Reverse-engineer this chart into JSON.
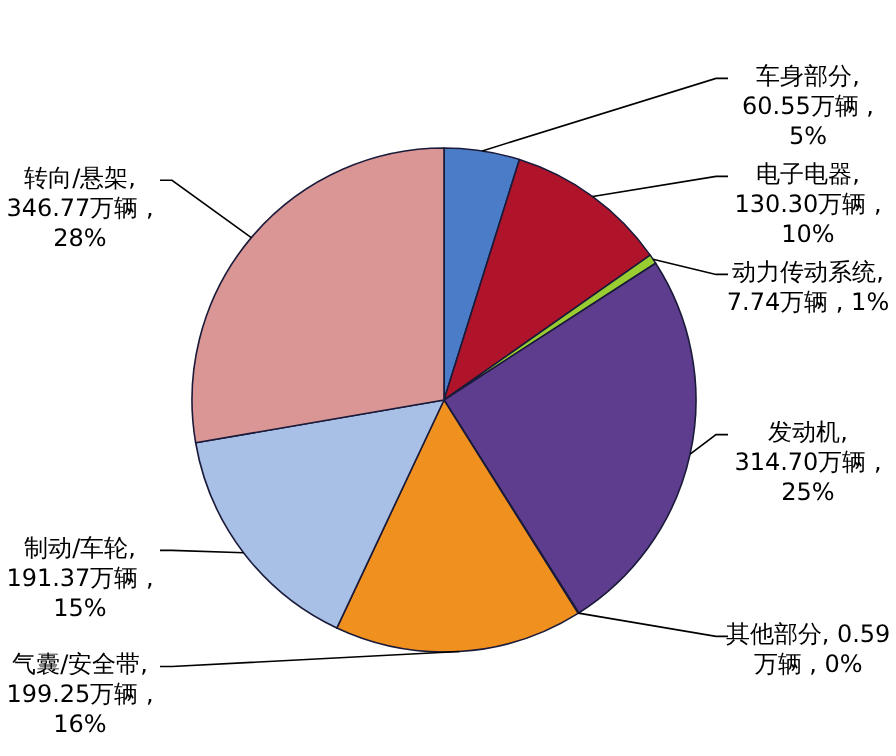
{
  "chart_data": {
    "type": "pie",
    "categories": [
      "车身部分",
      "电子电器",
      "动力传动系统",
      "发动机",
      "其他部分",
      "气囊/安全带",
      "制动/车轮",
      "转向/悬架"
    ],
    "values": [
      60.55,
      130.3,
      7.74,
      314.7,
      0.59,
      199.25,
      191.37,
      346.77
    ],
    "colors": [
      "#4a7cc8",
      "#b0142a",
      "#9acd32",
      "#5e3d8e",
      "#4bacc6",
      "#f0901e",
      "#a8bfe6",
      "#d99694"
    ],
    "value_labels": [
      ", 60.55万辆 , 5%",
      ", 130.30万辆 , 10%",
      ", 7.74万辆 , 1%",
      ", 314.70万辆 , 25%",
      ", 0.59万辆 , 0%",
      ", 199.25万辆 , 16%",
      ", 191.37万辆 , 15%",
      ", 346.77万辆 , 28%"
    ]
  }
}
